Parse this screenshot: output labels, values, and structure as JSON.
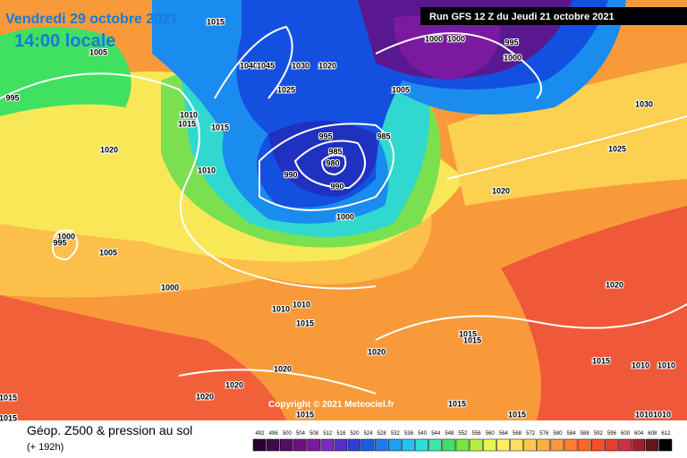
{
  "header": {
    "date": "Vendredi 29 octobre 2021",
    "time": "14:00 locale",
    "run": "Run GFS 12 Z du Jeudi 21 octobre 2021"
  },
  "map": {
    "isobar_labels": [
      "1015",
      "1005",
      "995",
      "1010",
      "1015",
      "1015",
      "1020",
      "1010",
      "1000",
      "995",
      "1005",
      "1000",
      "1010",
      "1010",
      "1015",
      "1020",
      "1020",
      "1020",
      "1020",
      "1015",
      "1015",
      "1015",
      "1015",
      "1015",
      "1015",
      "1015",
      "1015",
      "1010",
      "1010",
      "1010",
      "1010",
      "1020",
      "1020",
      "1025",
      "1030",
      "1000",
      "995",
      "1000",
      "1000",
      "1005",
      "1020",
      "1030",
      "1025",
      "1040",
      "1045",
      "995",
      "985",
      "985",
      "980",
      "990",
      "990",
      "1000"
    ],
    "copyright": "Copyright © 2021 Meteociel.fr"
  },
  "footer": {
    "title": "Géop. Z500 & pression au sol",
    "subtitle": "(+ 192h)"
  },
  "legend": {
    "labels": [
      492,
      496,
      500,
      504,
      508,
      512,
      516,
      520,
      524,
      528,
      532,
      536,
      540,
      544,
      548,
      552,
      556,
      560,
      564,
      568,
      572,
      576,
      580,
      584,
      588,
      592,
      596,
      600,
      604,
      608,
      612
    ]
  }
}
